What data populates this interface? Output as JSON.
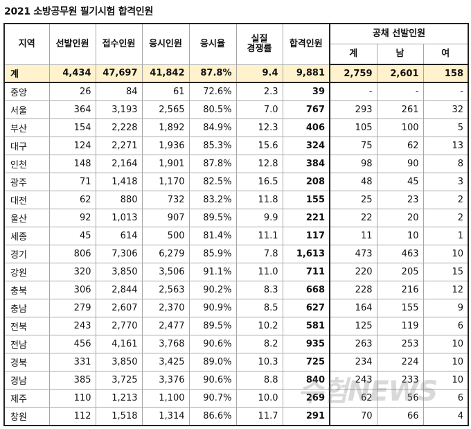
{
  "header": {
    "title": "2021 소방공무원 필기시험 합격인원"
  },
  "table": {
    "columns": [
      "지역",
      "선발인원",
      "접수인원",
      "응시인원",
      "응시율",
      "실질\n경쟁률",
      "합격인원"
    ],
    "group": "공채 선발인원",
    "group_columns": [
      "계",
      "남",
      "여"
    ],
    "total": [
      "계",
      "4,434",
      "47,697",
      "41,842",
      "87.8%",
      "9.4",
      "9,881",
      "2,759",
      "2,601",
      "158"
    ],
    "rows": [
      [
        "중앙",
        "26",
        "84",
        "61",
        "72.6%",
        "2.3",
        "39",
        "-",
        "-",
        "-"
      ],
      [
        "서울",
        "364",
        "3,193",
        "2,565",
        "80.5%",
        "7.0",
        "767",
        "293",
        "261",
        "32"
      ],
      [
        "부산",
        "154",
        "2,228",
        "1,892",
        "84.9%",
        "12.3",
        "406",
        "105",
        "100",
        "5"
      ],
      [
        "대구",
        "124",
        "2,271",
        "1,936",
        "85.3%",
        "15.6",
        "324",
        "75",
        "62",
        "13"
      ],
      [
        "인천",
        "148",
        "2,164",
        "1,901",
        "87.8%",
        "12.8",
        "384",
        "98",
        "90",
        "8"
      ],
      [
        "광주",
        "71",
        "1,418",
        "1,170",
        "82.5%",
        "16.5",
        "208",
        "48",
        "45",
        "3"
      ],
      [
        "대전",
        "62",
        "880",
        "732",
        "83.2%",
        "11.8",
        "155",
        "25",
        "23",
        "2"
      ],
      [
        "울산",
        "92",
        "1,013",
        "907",
        "89.5%",
        "9.9",
        "221",
        "22",
        "20",
        "2"
      ],
      [
        "세종",
        "45",
        "614",
        "500",
        "81.4%",
        "11.1",
        "117",
        "11",
        "10",
        "1"
      ],
      [
        "경기",
        "806",
        "7,306",
        "6,279",
        "85.9%",
        "7.8",
        "1,613",
        "473",
        "463",
        "10"
      ],
      [
        "강원",
        "320",
        "3,850",
        "3,506",
        "91.1%",
        "11.0",
        "711",
        "220",
        "205",
        "15"
      ],
      [
        "충북",
        "306",
        "2,844",
        "2,563",
        "90.2%",
        "8.3",
        "668",
        "228",
        "216",
        "12"
      ],
      [
        "충남",
        "279",
        "2,607",
        "2,370",
        "90.9%",
        "8.5",
        "627",
        "164",
        "155",
        "9"
      ],
      [
        "전북",
        "243",
        "2,770",
        "2,477",
        "89.5%",
        "10.2",
        "581",
        "125",
        "119",
        "6"
      ],
      [
        "전남",
        "456",
        "4,161",
        "3,768",
        "90.6%",
        "8.2",
        "935",
        "263",
        "253",
        "10"
      ],
      [
        "경북",
        "331",
        "3,850",
        "3,425",
        "89.0%",
        "10.3",
        "725",
        "234",
        "224",
        "10"
      ],
      [
        "경남",
        "385",
        "3,725",
        "3,376",
        "90.6%",
        "8.8",
        "840",
        "243",
        "233",
        "10"
      ],
      [
        "제주",
        "110",
        "1,213",
        "1,100",
        "90.7%",
        "10.0",
        "269",
        "62",
        "56",
        "6"
      ],
      [
        "창원",
        "112",
        "1,518",
        "1,314",
        "86.6%",
        "11.7",
        "291",
        "70",
        "66",
        "4"
      ]
    ]
  },
  "watermark": "수험NEWS"
}
